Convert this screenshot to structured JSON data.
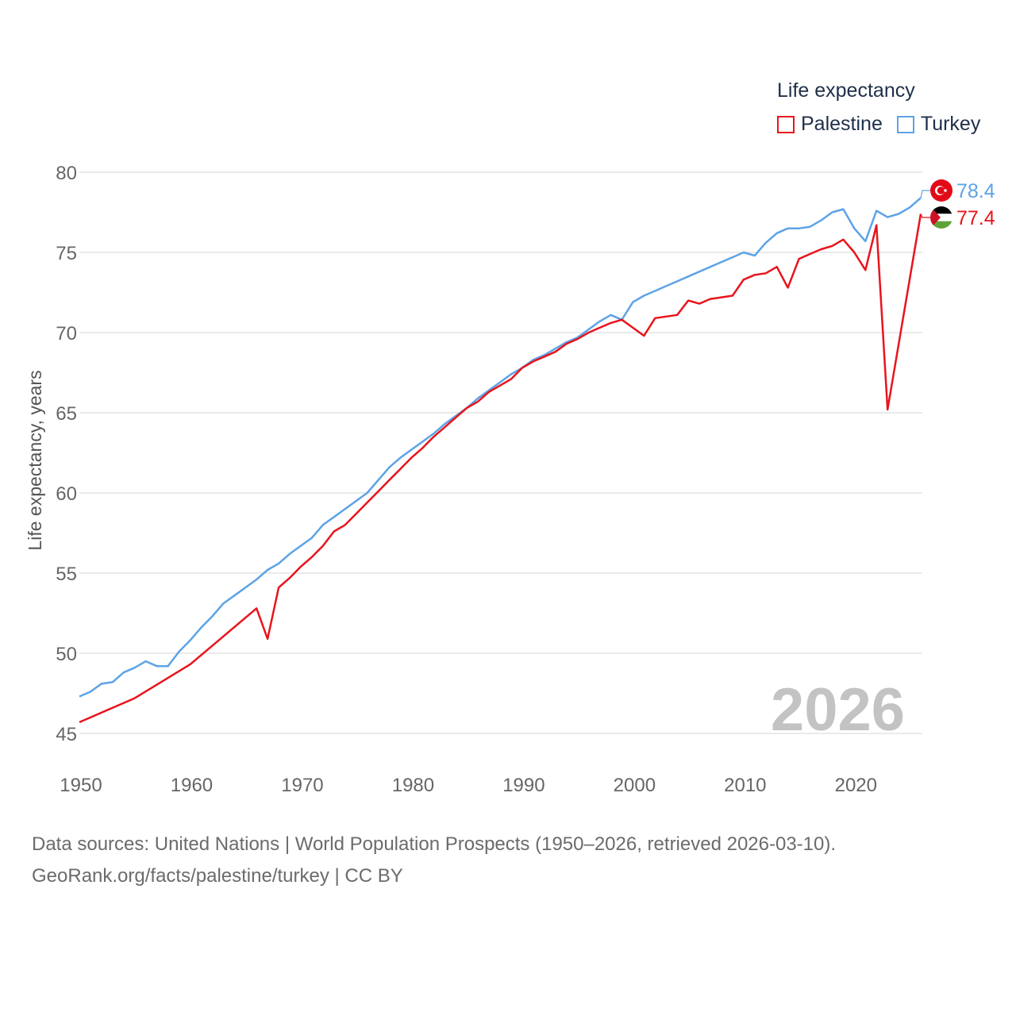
{
  "legend": {
    "title": "Life expectancy",
    "items": [
      {
        "label": "Palestine",
        "color": "#e8141c"
      },
      {
        "label": "Turkey",
        "color": "#5da3e6"
      }
    ]
  },
  "year_label": "2026",
  "footer": {
    "line1": "Data sources: United Nations | World Population Prospects (1950–2026, retrieved 2026-03-10).",
    "line2": "GeoRank.org/facts/palestine/turkey | CC BY"
  },
  "chart_data": {
    "type": "line",
    "title": "Life expectancy",
    "xlabel": "",
    "ylabel": "Life expectancy, years",
    "xlim": [
      1950,
      2026
    ],
    "ylim": [
      45,
      80
    ],
    "x_ticks": [
      1950,
      1960,
      1970,
      1980,
      1990,
      2000,
      2010,
      2020
    ],
    "y_ticks": [
      45,
      50,
      55,
      60,
      65,
      70,
      75,
      80
    ],
    "grid": true,
    "legend_position": "top-right",
    "end_labels": [
      {
        "series": "Turkey",
        "text": "78.4",
        "color": "#5da3e6",
        "flag": "turkey-flag-icon"
      },
      {
        "series": "Palestine",
        "text": "77.4",
        "color": "#e8141c",
        "flag": "palestine-flag-icon"
      }
    ],
    "series": [
      {
        "name": "Palestine",
        "color": "#e8141c",
        "points": [
          [
            1950,
            45.7
          ],
          [
            1955,
            47.2
          ],
          [
            1960,
            49.3
          ],
          [
            1966,
            52.8
          ],
          [
            1967,
            50.9
          ],
          [
            1968,
            54.1
          ],
          [
            1969,
            54.7
          ],
          [
            1970,
            55.4
          ],
          [
            1971,
            56.0
          ],
          [
            1972,
            56.7
          ],
          [
            1973,
            57.6
          ],
          [
            1974,
            58.0
          ],
          [
            1975,
            58.7
          ],
          [
            1976,
            59.4
          ],
          [
            1977,
            60.1
          ],
          [
            1978,
            60.8
          ],
          [
            1979,
            61.5
          ],
          [
            1980,
            62.2
          ],
          [
            1981,
            62.8
          ],
          [
            1982,
            63.5
          ],
          [
            1983,
            64.1
          ],
          [
            1984,
            64.7
          ],
          [
            1985,
            65.3
          ],
          [
            1986,
            65.7
          ],
          [
            1987,
            66.3
          ],
          [
            1988,
            66.7
          ],
          [
            1989,
            67.1
          ],
          [
            1990,
            67.8
          ],
          [
            1991,
            68.2
          ],
          [
            1992,
            68.5
          ],
          [
            1993,
            68.8
          ],
          [
            1994,
            69.3
          ],
          [
            1995,
            69.6
          ],
          [
            1996,
            70.0
          ],
          [
            1997,
            70.3
          ],
          [
            1998,
            70.6
          ],
          [
            1999,
            70.8
          ],
          [
            2000,
            70.3
          ],
          [
            2001,
            69.8
          ],
          [
            2002,
            70.9
          ],
          [
            2003,
            71.0
          ],
          [
            2004,
            71.1
          ],
          [
            2005,
            72.0
          ],
          [
            2006,
            71.8
          ],
          [
            2007,
            72.1
          ],
          [
            2008,
            72.2
          ],
          [
            2009,
            72.3
          ],
          [
            2010,
            73.3
          ],
          [
            2011,
            73.6
          ],
          [
            2012,
            73.7
          ],
          [
            2013,
            74.1
          ],
          [
            2014,
            72.8
          ],
          [
            2015,
            74.6
          ],
          [
            2016,
            74.9
          ],
          [
            2017,
            75.2
          ],
          [
            2018,
            75.4
          ],
          [
            2019,
            75.8
          ],
          [
            2020,
            75.0
          ],
          [
            2021,
            73.9
          ],
          [
            2022,
            76.7
          ],
          [
            2023,
            65.2
          ],
          [
            2026,
            77.4
          ]
        ]
      },
      {
        "name": "Turkey",
        "color": "#5da3e6",
        "points": [
          [
            1950,
            47.3
          ],
          [
            1951,
            47.6
          ],
          [
            1952,
            48.1
          ],
          [
            1953,
            48.2
          ],
          [
            1954,
            48.8
          ],
          [
            1955,
            49.1
          ],
          [
            1956,
            49.5
          ],
          [
            1957,
            49.2
          ],
          [
            1958,
            49.2
          ],
          [
            1959,
            50.1
          ],
          [
            1960,
            50.8
          ],
          [
            1961,
            51.6
          ],
          [
            1962,
            52.3
          ],
          [
            1963,
            53.1
          ],
          [
            1964,
            53.6
          ],
          [
            1965,
            54.1
          ],
          [
            1966,
            54.6
          ],
          [
            1967,
            55.2
          ],
          [
            1968,
            55.6
          ],
          [
            1969,
            56.2
          ],
          [
            1970,
            56.7
          ],
          [
            1971,
            57.2
          ],
          [
            1972,
            58.0
          ],
          [
            1973,
            58.5
          ],
          [
            1974,
            59.0
          ],
          [
            1975,
            59.5
          ],
          [
            1976,
            60.0
          ],
          [
            1977,
            60.8
          ],
          [
            1978,
            61.6
          ],
          [
            1979,
            62.2
          ],
          [
            1980,
            62.7
          ],
          [
            1981,
            63.2
          ],
          [
            1982,
            63.7
          ],
          [
            1983,
            64.3
          ],
          [
            1984,
            64.8
          ],
          [
            1985,
            65.3
          ],
          [
            1986,
            65.9
          ],
          [
            1987,
            66.4
          ],
          [
            1988,
            66.9
          ],
          [
            1989,
            67.4
          ],
          [
            1990,
            67.8
          ],
          [
            1991,
            68.3
          ],
          [
            1992,
            68.6
          ],
          [
            1993,
            69.0
          ],
          [
            1994,
            69.4
          ],
          [
            1995,
            69.7
          ],
          [
            1996,
            70.2
          ],
          [
            1997,
            70.7
          ],
          [
            1998,
            71.1
          ],
          [
            1999,
            70.8
          ],
          [
            2000,
            71.9
          ],
          [
            2001,
            72.3
          ],
          [
            2002,
            72.6
          ],
          [
            2003,
            72.9
          ],
          [
            2004,
            73.2
          ],
          [
            2005,
            73.5
          ],
          [
            2006,
            73.8
          ],
          [
            2007,
            74.1
          ],
          [
            2008,
            74.4
          ],
          [
            2009,
            74.7
          ],
          [
            2010,
            75.0
          ],
          [
            2011,
            74.8
          ],
          [
            2012,
            75.6
          ],
          [
            2013,
            76.2
          ],
          [
            2014,
            76.5
          ],
          [
            2015,
            76.5
          ],
          [
            2016,
            76.6
          ],
          [
            2017,
            77.0
          ],
          [
            2018,
            77.5
          ],
          [
            2019,
            77.7
          ],
          [
            2020,
            76.5
          ],
          [
            2021,
            75.7
          ],
          [
            2022,
            77.6
          ],
          [
            2023,
            77.2
          ],
          [
            2024,
            77.4
          ],
          [
            2025,
            77.8
          ],
          [
            2026,
            78.4
          ]
        ]
      }
    ]
  }
}
